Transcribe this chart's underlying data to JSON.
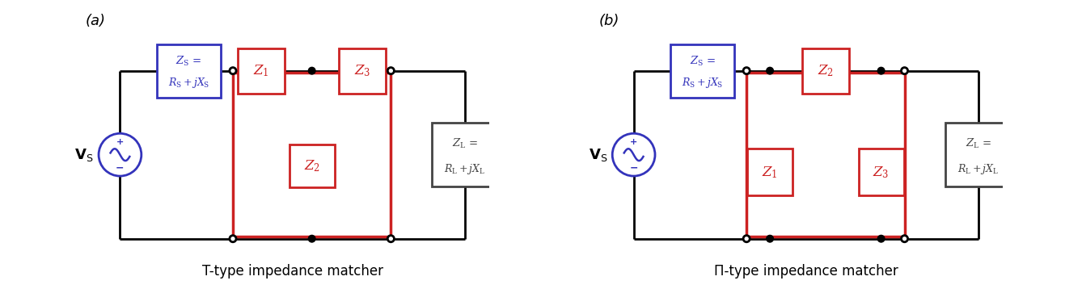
{
  "bg_color": "#ffffff",
  "line_color": "#000000",
  "blue_color": "#3333bb",
  "red_color": "#cc2222",
  "gray_color": "#444444",
  "lw": 2.0,
  "title_a": "T-type impedance matcher",
  "title_b": "Π-type impedance matcher",
  "label_a": "(a)",
  "label_b": "(b)",
  "vs_label": "$\\mathbf{V}_\\mathrm{S}$",
  "zs_line1": "$Z_\\mathrm{S}$ =",
  "zs_line2": "$R_\\mathrm{S}+jX_\\mathrm{S}$",
  "zl_line1": "$Z_\\mathrm{L}$ =",
  "zl_line2": "$R_\\mathrm{L}+jX_\\mathrm{L}$",
  "z1_label": "$Z_1$",
  "z2_label": "$Z_2$",
  "z3_label": "$Z_3$"
}
